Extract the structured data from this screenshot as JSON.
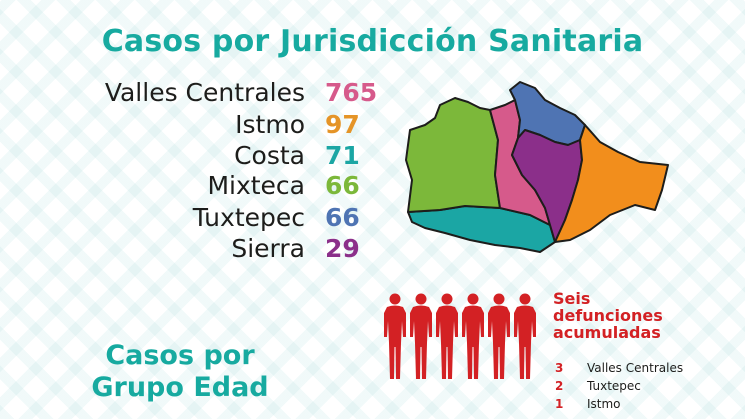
{
  "title": "Casos por Jurisdicción Sanitaria",
  "jurisdicciones": [
    {
      "name": "Valles Centrales",
      "value": "765",
      "color": "#d65a8b"
    },
    {
      "name": "Istmo",
      "value": "97",
      "color": "#e59427"
    },
    {
      "name": "Costa",
      "value": "71",
      "color": "#1ba6a4"
    },
    {
      "name": "Mixteca",
      "value": "66",
      "color": "#7cb83a"
    },
    {
      "name": "Tuxtepec",
      "value": "66",
      "color": "#4f74b3"
    },
    {
      "name": "Sierra",
      "value": "29",
      "color": "#8b2f8a"
    }
  ],
  "map_colors": {
    "mixteca": "#7cb83a",
    "valles": "#d65a8b",
    "tuxtepec": "#4f74b3",
    "sierra": "#8b2f8a",
    "istmo": "#f28e1c",
    "costa": "#1ba6a4"
  },
  "grupo_edad_title_line1": "Casos por",
  "grupo_edad_title_line2": "Grupo Edad",
  "defunciones": {
    "title_line1": "Seis",
    "title_line2": "defunciones",
    "title_line3": "acumuladas",
    "icon": "person-silhouette-icon",
    "count_icons": 6,
    "icon_color": "#d32124",
    "rows": [
      {
        "num": "3",
        "label": "Valles Centrales"
      },
      {
        "num": "2",
        "label": "Tuxtepec"
      },
      {
        "num": "1",
        "label": "Istmo"
      }
    ]
  }
}
